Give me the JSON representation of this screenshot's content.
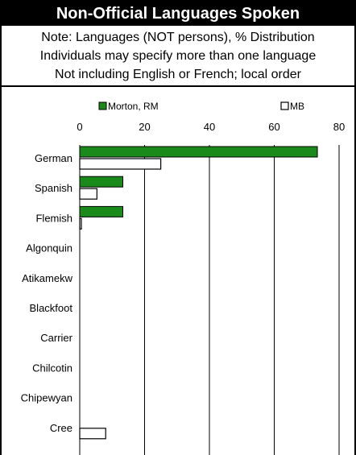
{
  "title": "Non-Official Languages Spoken",
  "notes": [
    "Note: Languages (NOT persons), % Distribution",
    "Individuals may specify more than one language",
    "Not including English or French; local order"
  ],
  "colors": {
    "series1": "#1a8a1a",
    "series2": "#ffffff",
    "stroke": "#000000"
  },
  "chart_data": {
    "type": "bar",
    "orientation": "horizontal",
    "categories": [
      "German",
      "Spanish",
      "Flemish",
      "Algonquin",
      "Atikamekw",
      "Blackfoot",
      "Carrier",
      "Chilcotin",
      "Chipewyan",
      "Cree"
    ],
    "series": [
      {
        "name": "Morton, RM",
        "values": [
          73.3,
          13.3,
          13.3,
          0,
          0,
          0,
          0,
          0,
          0,
          0
        ]
      },
      {
        "name": "MB",
        "values": [
          25,
          5.3,
          0.5,
          0,
          0,
          0,
          0,
          0,
          0,
          8
        ]
      }
    ],
    "xlim": [
      0,
      80
    ],
    "xticks": [
      0,
      20,
      40,
      60,
      80
    ],
    "grid": true,
    "legend_position": "top"
  }
}
